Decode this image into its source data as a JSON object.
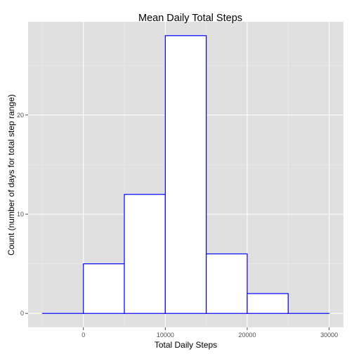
{
  "chart_data": {
    "type": "bar",
    "title": "Mean Daily Total Steps",
    "xlabel": "Total Daily Steps",
    "ylabel": "Count (number of days for total step range)",
    "bins": [
      {
        "x0": -5000,
        "x1": 0,
        "count": 0
      },
      {
        "x0": 0,
        "x1": 5000,
        "count": 5
      },
      {
        "x0": 5000,
        "x1": 10000,
        "count": 12
      },
      {
        "x0": 10000,
        "x1": 15000,
        "count": 28
      },
      {
        "x0": 15000,
        "x1": 20000,
        "count": 6
      },
      {
        "x0": 20000,
        "x1": 25000,
        "count": 2
      },
      {
        "x0": 25000,
        "x1": 30000,
        "count": 0
      }
    ],
    "xticks": [
      0,
      10000,
      20000,
      30000
    ],
    "xtick_labels": [
      "0",
      "10000",
      "20000",
      "30000"
    ],
    "yticks": [
      0,
      10,
      20
    ],
    "ytick_labels": [
      "0",
      "10",
      "20"
    ],
    "xlim": [
      -6750,
      31750
    ],
    "ylim": [
      -1.4,
      29.4
    ],
    "grid": true,
    "colors": {
      "panel_background": "#e0e0e0",
      "grid_major": "#ffffff",
      "grid_minor": "#ececec",
      "bar_fill": "#ffffff",
      "bar_outline": "#0000ff"
    }
  }
}
